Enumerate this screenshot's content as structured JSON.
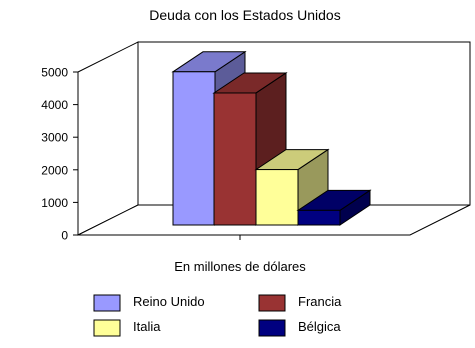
{
  "chart_data": {
    "type": "bar",
    "title": "Deuda con los Estados Unidos",
    "xlabel": "En millones de dólares",
    "ylabel": "",
    "ylim": [
      0,
      5000
    ],
    "yticks": [
      0,
      1000,
      2000,
      3000,
      4000,
      5000
    ],
    "grid": false,
    "legend_position": "bottom",
    "series": [
      {
        "name": "Reino Unido",
        "value": 4700,
        "color": "#9999ff"
      },
      {
        "name": "Francia",
        "value": 4050,
        "color": "#993333"
      },
      {
        "name": "Italia",
        "value": 1700,
        "color": "#ffff99"
      },
      {
        "name": "Bélgica",
        "value": 450,
        "color": "#000080"
      }
    ]
  }
}
